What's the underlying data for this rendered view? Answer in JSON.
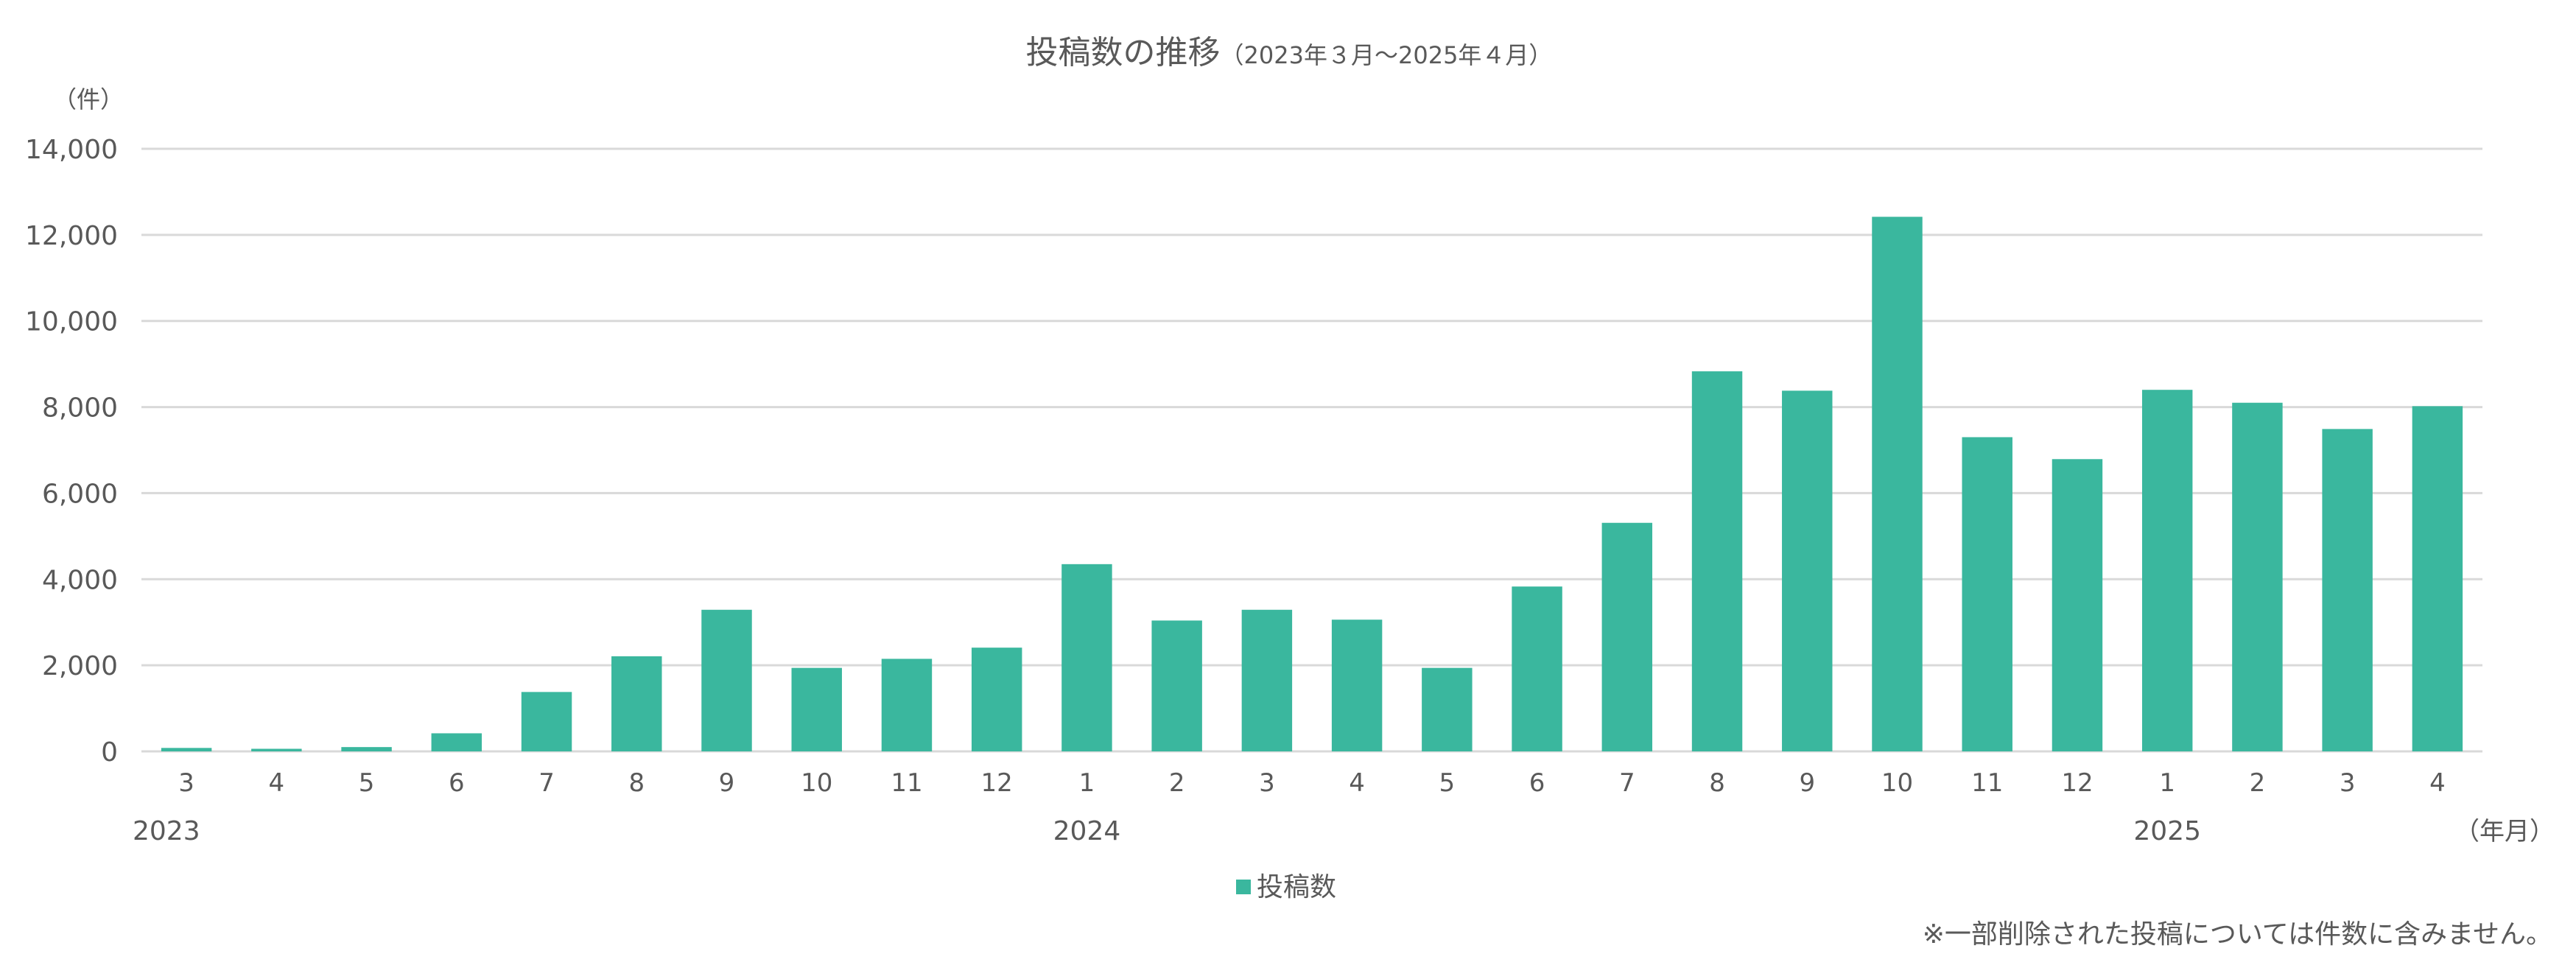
{
  "chart_data": {
    "type": "bar",
    "title": "投稿数の推移",
    "subtitle": "（2023年３月～2025年４月）",
    "ylabel": "（件）",
    "xlabel": "（年月）",
    "ylim": [
      0,
      14000
    ],
    "yticks": [
      0,
      2000,
      4000,
      6000,
      8000,
      10000,
      12000,
      14000
    ],
    "ytick_labels": [
      "0",
      "2,000",
      "4,000",
      "6,000",
      "8,000",
      "10,000",
      "12,000",
      "14,000"
    ],
    "grid": true,
    "categories": [
      "3",
      "4",
      "5",
      "6",
      "7",
      "8",
      "9",
      "10",
      "11",
      "12",
      "1",
      "2",
      "3",
      "4",
      "5",
      "6",
      "7",
      "8",
      "9",
      "10",
      "11",
      "12",
      "1",
      "2",
      "3",
      "4"
    ],
    "year_labels": [
      {
        "label": "2023",
        "start_index": 0
      },
      {
        "label": "2024",
        "start_index": 10
      },
      {
        "label": "2025",
        "start_index": 22
      }
    ],
    "series": [
      {
        "name": "投稿数",
        "color": "#3AB79E",
        "values": [
          80,
          60,
          100,
          420,
          1380,
          2210,
          3290,
          1940,
          2150,
          2410,
          4350,
          3040,
          3290,
          3060,
          1940,
          3830,
          5310,
          8830,
          8380,
          12420,
          7300,
          6790,
          8400,
          8100,
          7490,
          8020
        ]
      }
    ],
    "legend": {
      "placement": "bottom"
    },
    "note": "※一部削除された投稿については件数に含みません。"
  }
}
